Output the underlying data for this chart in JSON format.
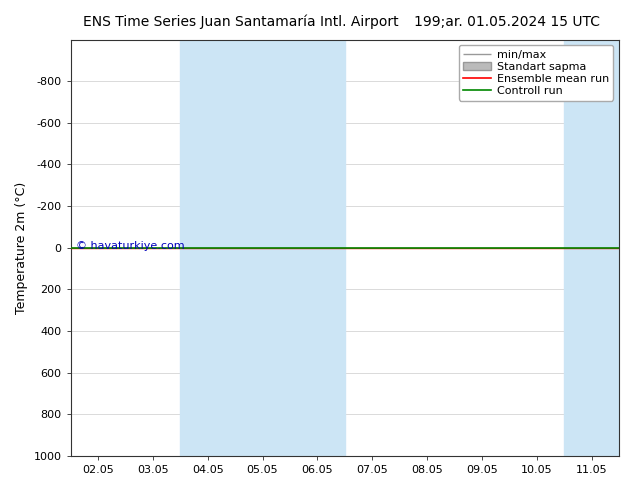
{
  "title_left": "ENS Time Series Juan Santamaría Intl. Airport",
  "title_right": "199;ar. 01.05.2024 15 UTC",
  "ylabel": "Temperature 2m (°C)",
  "ylim_top": -1000,
  "ylim_bottom": 1000,
  "yticks": [
    -800,
    -600,
    -400,
    -200,
    0,
    200,
    400,
    600,
    800,
    1000
  ],
  "x_labels": [
    "02.05",
    "03.05",
    "04.05",
    "05.05",
    "06.05",
    "07.05",
    "08.05",
    "09.05",
    "10.05",
    "11.05"
  ],
  "x_tick_positions": [
    0,
    1,
    2,
    3,
    4,
    5,
    6,
    7,
    8,
    9
  ],
  "blue_shade_ranges": [
    [
      1.5,
      4.5
    ],
    [
      8.5,
      10.5
    ]
  ],
  "green_line_y": 0,
  "red_line_y": 0,
  "watermark": "© havaturkiye.com",
  "watermark_color": "#0000bb",
  "background_color": "#ffffff",
  "plot_bg_color": "#ffffff",
  "blue_shade_color": "#cce5f5",
  "green_line_color": "#008800",
  "red_line_color": "#ff0000",
  "legend_entries": [
    "min/max",
    "Standart sapma",
    "Ensemble mean run",
    "Controll run"
  ],
  "legend_line_colors": [
    "#999999",
    "#bbbbbb",
    "#ff0000",
    "#008800"
  ],
  "title_fontsize": 10,
  "axis_label_fontsize": 9,
  "tick_fontsize": 8,
  "legend_fontsize": 8
}
